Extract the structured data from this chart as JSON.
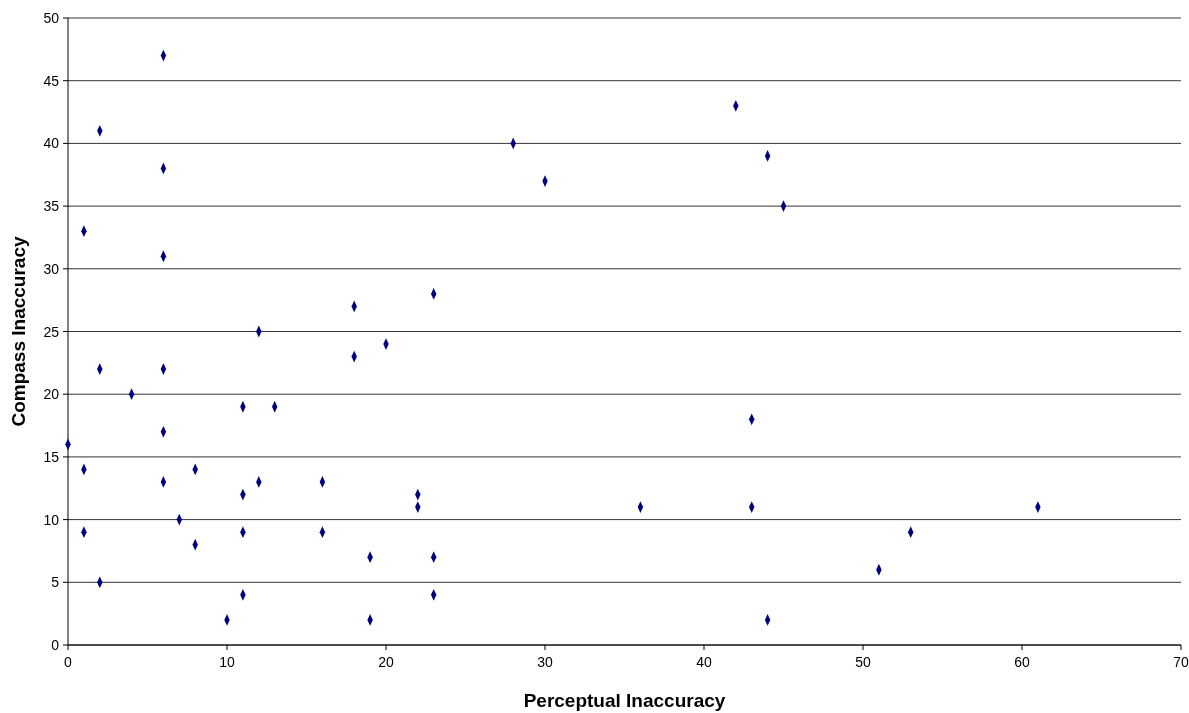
{
  "chart_data": {
    "type": "scatter",
    "xlabel": "Perceptual Inaccuracy",
    "ylabel": "Compass Inaccuracy",
    "x": [
      6,
      2,
      6,
      1,
      6,
      2,
      6,
      4,
      0,
      6,
      1,
      6,
      1,
      2,
      7,
      8,
      8,
      10,
      11,
      11,
      11,
      11,
      12,
      12,
      13,
      16,
      16,
      18,
      18,
      19,
      19,
      20,
      22,
      22,
      23,
      23,
      23,
      28,
      30,
      36,
      42,
      44,
      45,
      43,
      43,
      44,
      51,
      53,
      61
    ],
    "series": [
      {
        "color": "#000080",
        "values": [
          47,
          41,
          38,
          33,
          31,
          22,
          22,
          20,
          16,
          17,
          14,
          13,
          9,
          5,
          10,
          14,
          8,
          2,
          19,
          12,
          9,
          4,
          25,
          13,
          19,
          13,
          9,
          27,
          23,
          7,
          2,
          24,
          12,
          11,
          28,
          7,
          4,
          40,
          37,
          11,
          43,
          39,
          35,
          18,
          11,
          2,
          6,
          9,
          11
        ]
      }
    ],
    "xlim": [
      0,
      70
    ],
    "xticks": [
      0,
      10,
      20,
      30,
      40,
      50,
      60,
      70
    ],
    "ylim": [
      0,
      50
    ],
    "yticks": [
      0,
      5,
      10,
      15,
      20,
      25,
      30,
      35,
      40,
      45,
      50
    ],
    "grid": "y",
    "marker": "diamond"
  }
}
